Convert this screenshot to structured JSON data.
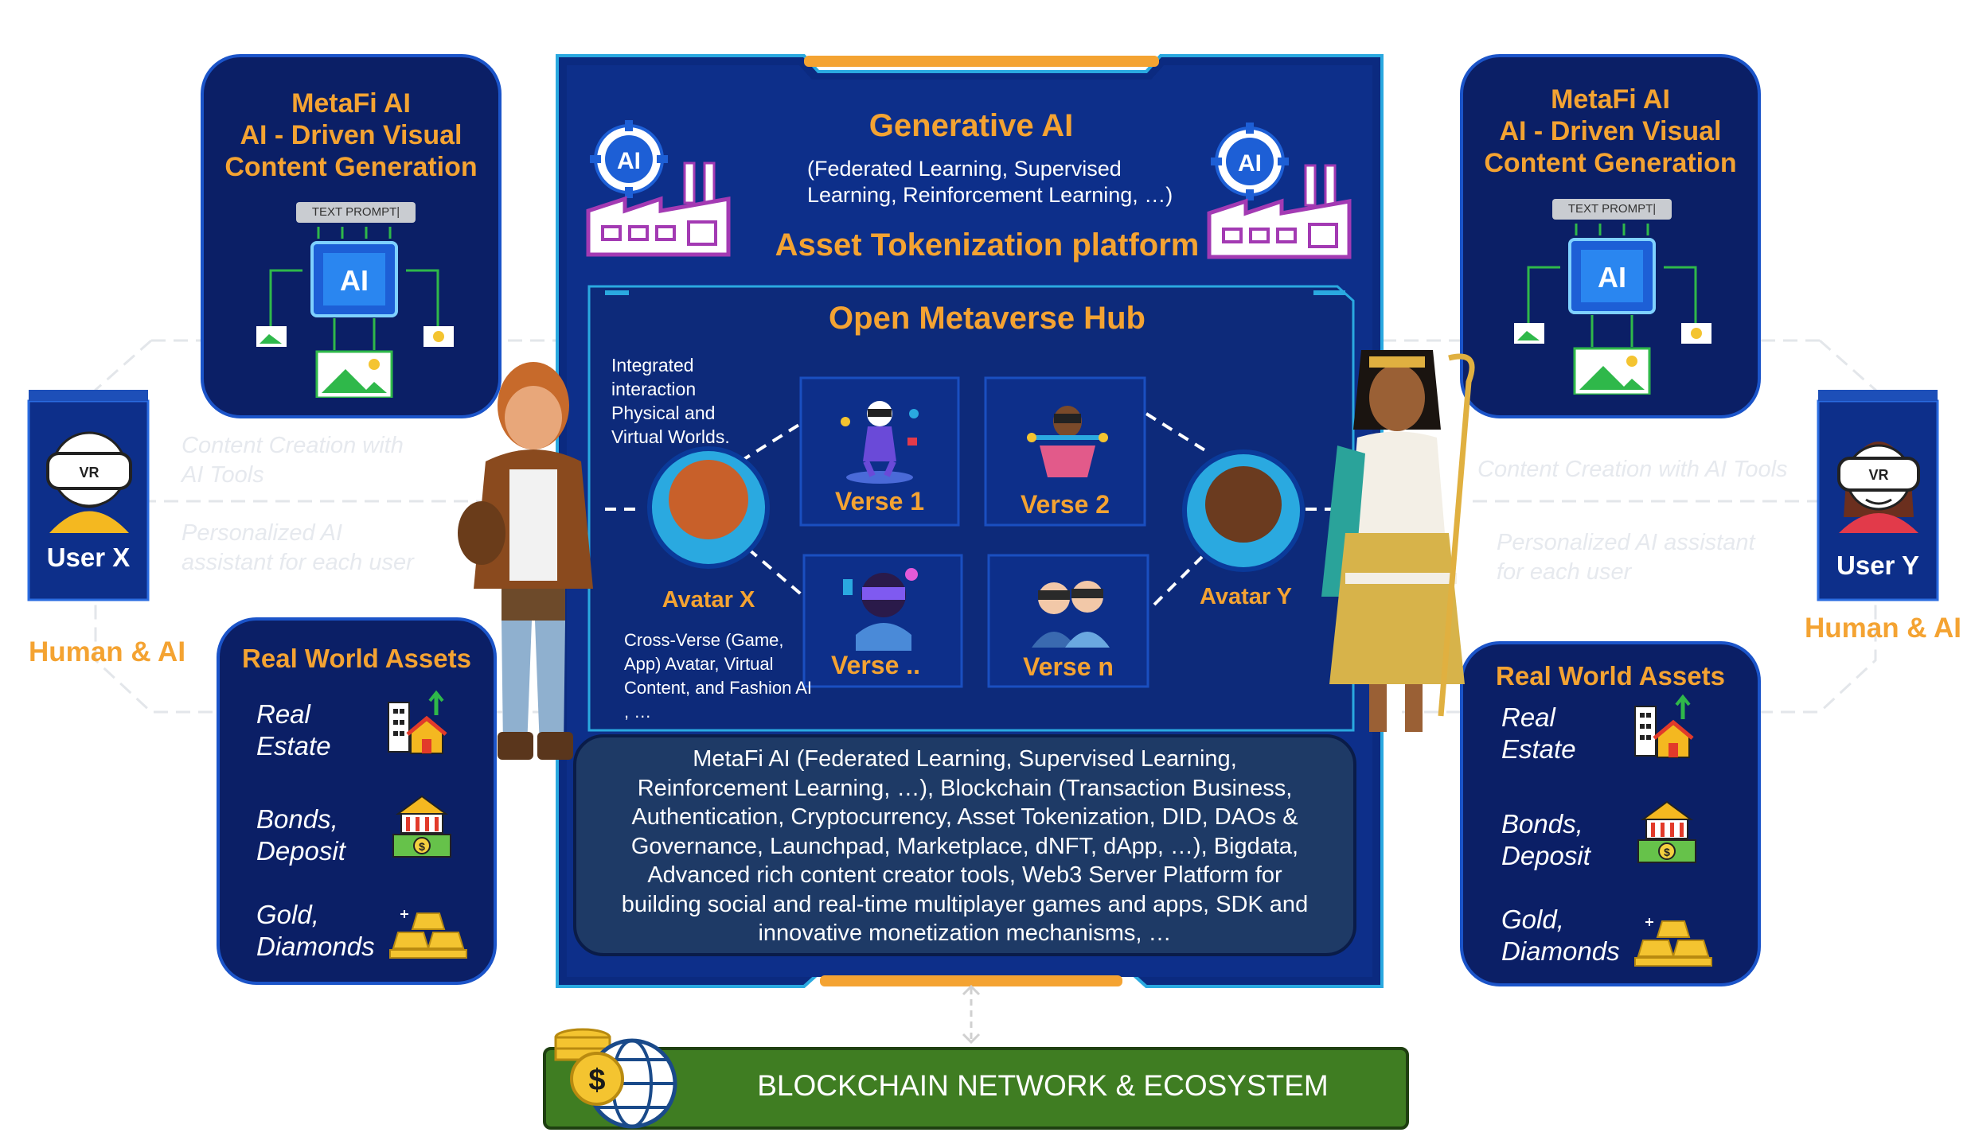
{
  "left_panel": {
    "title_lines": [
      "MetaFi AI",
      "AI - Driven Visual",
      "Content Generation"
    ],
    "text_prompt": "TEXT PROMPT|",
    "chip_label": "AI"
  },
  "right_panel": {
    "title_lines": [
      "MetaFi AI",
      "AI - Driven Visual",
      "Content Generation"
    ],
    "text_prompt": "TEXT PROMPT|",
    "chip_label": "AI"
  },
  "user_x": {
    "label": "User X",
    "vr": "VR",
    "caption": "Human & AI"
  },
  "user_y": {
    "label": "User Y",
    "vr": "VR",
    "caption": "Human & AI"
  },
  "left_ghost": {
    "line1": "Content Creation with",
    "line2": "AI Tools",
    "line3": "Personalized AI",
    "line4": "assistant for each user"
  },
  "right_ghost": {
    "line1": "Content Creation with AI Tools",
    "line2": "Personalized AI assistant",
    "line3": "for each user"
  },
  "left_assets": {
    "title": "Real World Assets",
    "items": [
      {
        "line1": "Real",
        "line2": "Estate",
        "icon": "real-estate-icon"
      },
      {
        "line1": "Bonds,",
        "line2": "Deposit",
        "icon": "bank-deposit-icon"
      },
      {
        "line1": "Gold,",
        "line2": "Diamonds",
        "icon": "gold-bars-icon"
      }
    ]
  },
  "right_assets": {
    "title": "Real World Assets",
    "items": [
      {
        "line1": "Real",
        "line2": "Estate",
        "icon": "real-estate-icon"
      },
      {
        "line1": "Bonds,",
        "line2": "Deposit",
        "icon": "bank-deposit-icon"
      },
      {
        "line1": "Gold,",
        "line2": "Diamonds",
        "icon": "gold-bars-icon"
      }
    ]
  },
  "center": {
    "gen_ai_title": "Generative AI",
    "gen_ai_sub1": "(Federated Learning, Supervised",
    "gen_ai_sub2": "Learning, Reinforcement Learning, …)",
    "tokenization": "Asset Tokenization platform",
    "factory_badge": "AI",
    "hub_title": "Open Metaverse Hub",
    "integrated": [
      "Integrated",
      "interaction",
      "Physical and",
      "Virtual Worlds."
    ],
    "avatar_x": "Avatar X",
    "avatar_y": "Avatar Y",
    "cross_verse": [
      "Cross-Verse (Game,",
      "App) Avatar, Virtual",
      "Content, and Fashion AI",
      ", …"
    ],
    "verses": [
      "Verse 1",
      "Verse 2",
      "Verse ..",
      "Verse n"
    ],
    "tech_lines": [
      "MetaFi AI (Federated Learning, Supervised Learning,",
      "Reinforcement Learning, …), Blockchain (Transaction Business,",
      "Authentication, Cryptocurrency, Asset Tokenization, DID, DAOs &",
      "Governance, Launchpad, Marketplace, dNFT, dApp, …), Bigdata,",
      "Advanced rich content creator tools, Web3 Server Platform for",
      "building social and real-time multiplayer games and apps, SDK and",
      "innovative monetization mechanisms, …"
    ]
  },
  "blockchain": {
    "label": "BLOCKCHAIN NETWORK & ECOSYSTEM",
    "coin_symbol": "$"
  },
  "colors": {
    "navy": "#0b1f66",
    "panel_blue": "#0d2f8a",
    "accent_orange": "#f4a332",
    "cyan": "#2aa9e0",
    "green_bar": "#3f7d22",
    "tech_box": "#1e3a66"
  }
}
